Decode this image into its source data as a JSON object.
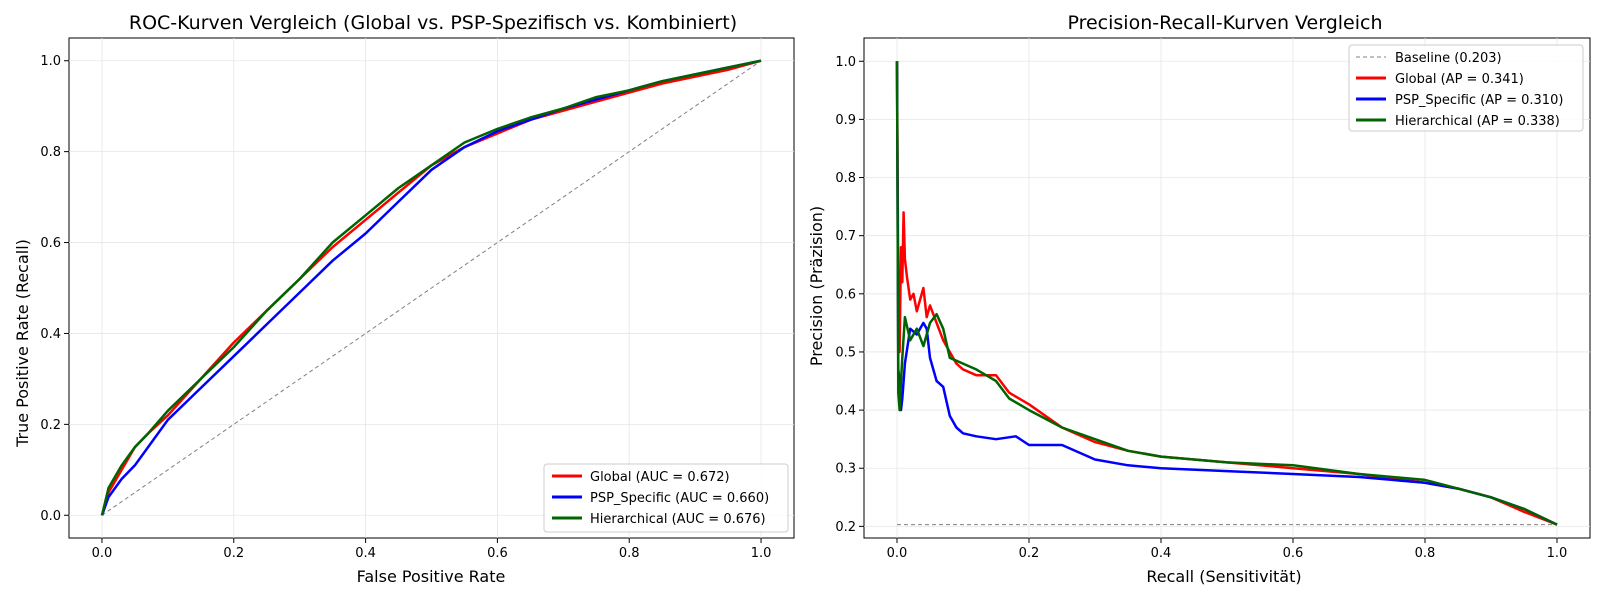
{
  "chart_data": [
    {
      "type": "line",
      "title": "ROC-Kurven Vergleich (Global vs. PSP-Spezifisch vs. Kombiniert)",
      "xlabel": "False Positive Rate",
      "ylabel": "True Positive Rate (Recall)",
      "xlim": [
        -0.05,
        1.05
      ],
      "ylim": [
        -0.05,
        1.05
      ],
      "xticks": [
        "0.0",
        "0.2",
        "0.4",
        "0.6",
        "0.8",
        "1.0"
      ],
      "yticks": [
        "0.0",
        "0.2",
        "0.4",
        "0.6",
        "0.8",
        "1.0"
      ],
      "grid": true,
      "legend_position": "lower-right",
      "series": [
        {
          "name": "Global (AUC = 0.672)",
          "color": "#ff0000",
          "x": [
            0,
            0.01,
            0.03,
            0.05,
            0.07,
            0.1,
            0.15,
            0.2,
            0.25,
            0.3,
            0.35,
            0.4,
            0.45,
            0.5,
            0.55,
            0.6,
            0.65,
            0.7,
            0.75,
            0.8,
            0.85,
            0.9,
            0.95,
            1.0
          ],
          "y": [
            0,
            0.05,
            0.1,
            0.15,
            0.18,
            0.22,
            0.3,
            0.38,
            0.45,
            0.52,
            0.59,
            0.65,
            0.71,
            0.77,
            0.81,
            0.84,
            0.87,
            0.89,
            0.91,
            0.93,
            0.95,
            0.965,
            0.98,
            1.0
          ]
        },
        {
          "name": "PSP_Specific (AUC = 0.660)",
          "color": "#0000ff",
          "x": [
            0,
            0.01,
            0.03,
            0.05,
            0.07,
            0.1,
            0.15,
            0.2,
            0.25,
            0.3,
            0.35,
            0.4,
            0.45,
            0.5,
            0.55,
            0.6,
            0.65,
            0.7,
            0.75,
            0.8,
            0.85,
            0.9,
            0.95,
            1.0
          ],
          "y": [
            0,
            0.04,
            0.08,
            0.11,
            0.15,
            0.21,
            0.28,
            0.35,
            0.42,
            0.49,
            0.56,
            0.62,
            0.69,
            0.76,
            0.81,
            0.845,
            0.87,
            0.895,
            0.915,
            0.935,
            0.955,
            0.97,
            0.985,
            1.0
          ]
        },
        {
          "name": "Hierarchical (AUC = 0.676)",
          "color": "#006400",
          "x": [
            0,
            0.01,
            0.03,
            0.05,
            0.07,
            0.1,
            0.15,
            0.2,
            0.25,
            0.3,
            0.35,
            0.4,
            0.45,
            0.5,
            0.55,
            0.6,
            0.65,
            0.7,
            0.75,
            0.8,
            0.85,
            0.9,
            0.95,
            1.0
          ],
          "y": [
            0,
            0.06,
            0.11,
            0.15,
            0.18,
            0.23,
            0.3,
            0.37,
            0.45,
            0.52,
            0.6,
            0.66,
            0.72,
            0.77,
            0.82,
            0.85,
            0.875,
            0.895,
            0.92,
            0.935,
            0.955,
            0.97,
            0.985,
            1.0
          ]
        }
      ],
      "reference_line": {
        "x": [
          0,
          1
        ],
        "y": [
          0,
          1
        ],
        "color": "#808080"
      }
    },
    {
      "type": "line",
      "title": "Precision-Recall-Kurven Vergleich",
      "xlabel": "Recall (Sensitivität)",
      "ylabel": "Precision (Präzision)",
      "xlim": [
        -0.05,
        1.05
      ],
      "ylim": [
        0.18,
        1.04
      ],
      "xticks": [
        "0.0",
        "0.2",
        "0.4",
        "0.6",
        "0.8",
        "1.0"
      ],
      "yticks": [
        "0.2",
        "0.3",
        "0.4",
        "0.5",
        "0.6",
        "0.7",
        "0.8",
        "0.9",
        "1.0"
      ],
      "grid": true,
      "legend_position": "upper-right",
      "series": [
        {
          "name": "Baseline (0.203)",
          "color": "#808080",
          "dashed": true,
          "x": [
            0,
            1
          ],
          "y": [
            0.203,
            0.203
          ]
        },
        {
          "name": "Global (AP = 0.341)",
          "color": "#ff0000",
          "x": [
            0,
            0.002,
            0.004,
            0.006,
            0.008,
            0.01,
            0.012,
            0.015,
            0.02,
            0.025,
            0.03,
            0.035,
            0.04,
            0.045,
            0.05,
            0.06,
            0.07,
            0.08,
            0.09,
            0.1,
            0.12,
            0.15,
            0.17,
            0.2,
            0.25,
            0.3,
            0.35,
            0.4,
            0.5,
            0.6,
            0.7,
            0.8,
            0.85,
            0.9,
            0.95,
            1.0
          ],
          "y": [
            1.0,
            0.6,
            0.5,
            0.68,
            0.62,
            0.74,
            0.66,
            0.63,
            0.59,
            0.6,
            0.57,
            0.59,
            0.61,
            0.56,
            0.58,
            0.55,
            0.52,
            0.5,
            0.48,
            0.47,
            0.46,
            0.46,
            0.43,
            0.41,
            0.37,
            0.345,
            0.33,
            0.32,
            0.31,
            0.3,
            0.29,
            0.275,
            0.265,
            0.25,
            0.225,
            0.203
          ]
        },
        {
          "name": "PSP_Specific (AP = 0.310)",
          "color": "#0000ff",
          "x": [
            0,
            0.002,
            0.004,
            0.006,
            0.008,
            0.012,
            0.02,
            0.03,
            0.04,
            0.045,
            0.05,
            0.06,
            0.07,
            0.08,
            0.09,
            0.1,
            0.12,
            0.15,
            0.18,
            0.2,
            0.25,
            0.3,
            0.35,
            0.4,
            0.5,
            0.6,
            0.7,
            0.8,
            0.85,
            0.9,
            0.95,
            1.0
          ],
          "y": [
            1.0,
            0.47,
            0.45,
            0.4,
            0.42,
            0.48,
            0.54,
            0.53,
            0.55,
            0.54,
            0.49,
            0.45,
            0.44,
            0.39,
            0.37,
            0.36,
            0.355,
            0.35,
            0.355,
            0.34,
            0.34,
            0.315,
            0.305,
            0.3,
            0.295,
            0.29,
            0.285,
            0.275,
            0.265,
            0.25,
            0.23,
            0.203
          ]
        },
        {
          "name": "Hierarchical (AP = 0.338)",
          "color": "#006400",
          "x": [
            0,
            0.002,
            0.004,
            0.006,
            0.008,
            0.012,
            0.02,
            0.03,
            0.04,
            0.05,
            0.06,
            0.07,
            0.08,
            0.1,
            0.12,
            0.15,
            0.17,
            0.2,
            0.25,
            0.3,
            0.35,
            0.4,
            0.5,
            0.6,
            0.7,
            0.8,
            0.85,
            0.9,
            0.95,
            1.0
          ],
          "y": [
            1.0,
            0.43,
            0.4,
            0.45,
            0.49,
            0.56,
            0.52,
            0.54,
            0.51,
            0.55,
            0.565,
            0.54,
            0.49,
            0.48,
            0.47,
            0.45,
            0.42,
            0.4,
            0.37,
            0.35,
            0.33,
            0.32,
            0.31,
            0.305,
            0.29,
            0.28,
            0.265,
            0.25,
            0.23,
            0.203
          ]
        }
      ]
    }
  ]
}
